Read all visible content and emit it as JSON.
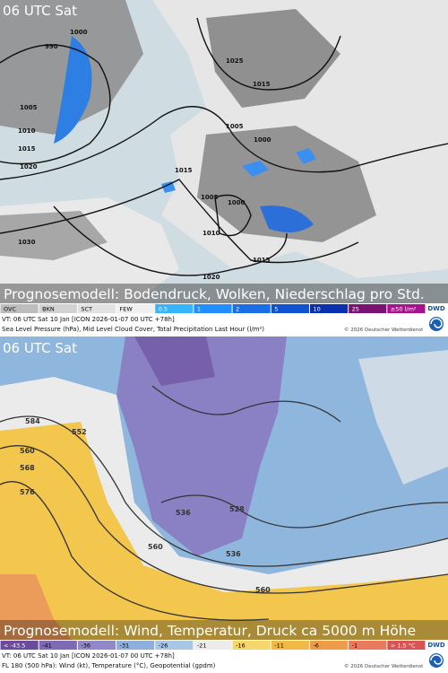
{
  "panels": [
    {
      "time_label": "06 UTC Sat",
      "caption": "Prognosemodell: Bodendruck, Wolken, Niederschlag pro Std.",
      "legend": [
        {
          "label": "OVC",
          "color": "#bdbdbd",
          "text_color": "#000"
        },
        {
          "label": "BKN",
          "color": "#d2d2d2",
          "text_color": "#000"
        },
        {
          "label": "SCT",
          "color": "#e2e2e2",
          "text_color": "#000"
        },
        {
          "label": "FEW",
          "color": "#f0f0f0",
          "text_color": "#000"
        },
        {
          "label": "0.5",
          "color": "#35b4ff",
          "text_color": "#fff"
        },
        {
          "label": "1",
          "color": "#1f8fff",
          "text_color": "#fff"
        },
        {
          "label": "2",
          "color": "#1a6ee6",
          "text_color": "#fff"
        },
        {
          "label": "5",
          "color": "#0f52d2",
          "text_color": "#fff"
        },
        {
          "label": "10",
          "color": "#0a30b0",
          "text_color": "#fff"
        },
        {
          "label": "25",
          "color": "#7a1273",
          "text_color": "#fff"
        },
        {
          "label": "≥50 l/m²",
          "color": "#a8128f",
          "text_color": "#fff"
        }
      ],
      "valid_time": "VT: 06 UTC Sat  10 Jan [ICON 2026-01-07 00 UTC +78h]",
      "description": "Sea Level Pressure (hPa), Mid Level Cloud Cover, Total Precipitation Last Hour (l/m²)",
      "copyright": "© 2026 Deutscher Wetterdienst",
      "logo": "DWD",
      "map_labels": [
        "990",
        "1000",
        "1005",
        "1010",
        "1015",
        "1020",
        "1030",
        "1025",
        "1015",
        "1005",
        "1000",
        "1015",
        "1005",
        "1000",
        "1010",
        "1015",
        "1020"
      ]
    },
    {
      "time_label": "06 UTC Sat",
      "caption": "Prognosemodell: Wind, Temperatur, Druck ca 5000 m Höhe",
      "legend": [
        {
          "label": "< -43.5",
          "color": "#6a4c9a",
          "text_color": "#fff"
        },
        {
          "label": "-41",
          "color": "#7e6ab4",
          "text_color": "#000"
        },
        {
          "label": "-36",
          "color": "#9088c8",
          "text_color": "#000"
        },
        {
          "label": "-31",
          "color": "#8eaedb",
          "text_color": "#000"
        },
        {
          "label": "-26",
          "color": "#a8c6e6",
          "text_color": "#000"
        },
        {
          "label": "-21",
          "color": "#ececec",
          "text_color": "#000"
        },
        {
          "label": "-16",
          "color": "#f6d66a",
          "text_color": "#000"
        },
        {
          "label": "-11",
          "color": "#f2b944",
          "text_color": "#000"
        },
        {
          "label": "-6",
          "color": "#ee9c48",
          "text_color": "#000"
        },
        {
          "label": "-1",
          "color": "#e97a5e",
          "text_color": "#000"
        },
        {
          "label": "> 1.5 °C",
          "color": "#d95454",
          "text_color": "#fff"
        }
      ],
      "valid_time": "VT: 06 UTC Sat  10 Jan [ICON 2026-01-07 00 UTC +78h]",
      "description": "FL 180 (500 hPa): Wind (kt), Temperature (°C), Geopotential (gpdm)",
      "copyright": "© 2026 Deutscher Wetterdienst",
      "logo": "DWD",
      "map_labels": [
        "584",
        "552",
        "560",
        "568",
        "576",
        "536",
        "528",
        "536",
        "560",
        "560"
      ]
    }
  ]
}
